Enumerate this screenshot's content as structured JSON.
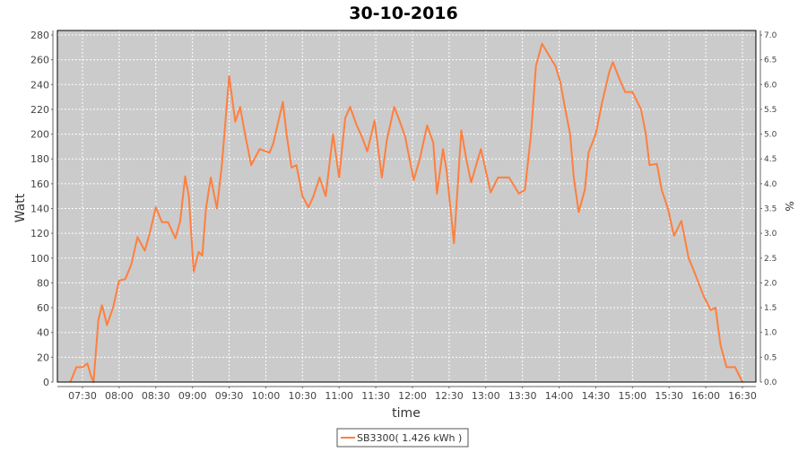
{
  "chart_data": {
    "type": "line",
    "title": "30-10-2016",
    "xlabel": "time",
    "ylabel": "Watt",
    "y2label": "%",
    "ylim": [
      0,
      280
    ],
    "y2lim": [
      0,
      7.0
    ],
    "xlim": [
      "07:13",
      "16:47"
    ],
    "yticks": [
      0,
      20,
      40,
      60,
      80,
      100,
      120,
      140,
      160,
      180,
      200,
      220,
      240,
      260,
      280
    ],
    "y2ticks": [
      "0.0",
      "0.5",
      "1.0",
      "1.5",
      "2.0",
      "2.5",
      "3.0",
      "3.5",
      "4.0",
      "4.5",
      "5.0",
      "5.5",
      "6.0",
      "6.5",
      "7.0"
    ],
    "xticks": [
      "07:30",
      "08:00",
      "08:30",
      "09:00",
      "09:30",
      "10:00",
      "10:30",
      "11:00",
      "11:30",
      "12:00",
      "12:30",
      "13:00",
      "13:30",
      "14:00",
      "14:30",
      "15:00",
      "15:30",
      "16:00",
      "16:30"
    ],
    "grid": true,
    "legend_position": "bottom",
    "colors": {
      "series": "#ff7f3f",
      "plot_background": "#cbcbcb",
      "grid": "#ffffff"
    },
    "series": [
      {
        "name": "SB3300( 1.426 kWh )",
        "points": [
          [
            "07:20",
            0
          ],
          [
            "07:25",
            12
          ],
          [
            "07:30",
            12
          ],
          [
            "07:34",
            15
          ],
          [
            "07:37",
            5
          ],
          [
            "07:39",
            0
          ],
          [
            "07:43",
            50
          ],
          [
            "07:46",
            62
          ],
          [
            "07:50",
            46
          ],
          [
            "07:55",
            60
          ],
          [
            "08:00",
            82
          ],
          [
            "08:05",
            83
          ],
          [
            "08:10",
            95
          ],
          [
            "08:15",
            117
          ],
          [
            "08:21",
            106
          ],
          [
            "08:25",
            120
          ],
          [
            "08:30",
            141
          ],
          [
            "08:35",
            129
          ],
          [
            "08:40",
            129
          ],
          [
            "08:46",
            116
          ],
          [
            "08:50",
            130
          ],
          [
            "08:54",
            166
          ],
          [
            "08:57",
            150
          ],
          [
            "09:01",
            89
          ],
          [
            "09:05",
            105
          ],
          [
            "09:08",
            102
          ],
          [
            "09:11",
            140
          ],
          [
            "09:15",
            165
          ],
          [
            "09:20",
            140
          ],
          [
            "09:24",
            175
          ],
          [
            "09:30",
            247
          ],
          [
            "09:35",
            210
          ],
          [
            "09:39",
            222
          ],
          [
            "09:43",
            200
          ],
          [
            "09:48",
            175
          ],
          [
            "09:55",
            188
          ],
          [
            "10:03",
            185
          ],
          [
            "10:06",
            192
          ],
          [
            "10:14",
            226
          ],
          [
            "10:17",
            200
          ],
          [
            "10:21",
            173
          ],
          [
            "10:25",
            175
          ],
          [
            "10:30",
            150
          ],
          [
            "10:35",
            141
          ],
          [
            "10:39",
            150
          ],
          [
            "10:44",
            165
          ],
          [
            "10:49",
            150
          ],
          [
            "10:55",
            200
          ],
          [
            "11:00",
            165
          ],
          [
            "11:05",
            213
          ],
          [
            "11:09",
            222
          ],
          [
            "11:14",
            208
          ],
          [
            "11:19",
            197
          ],
          [
            "11:23",
            186
          ],
          [
            "11:29",
            211
          ],
          [
            "11:35",
            165
          ],
          [
            "11:39",
            195
          ],
          [
            "11:45",
            222
          ],
          [
            "11:49",
            212
          ],
          [
            "11:54",
            198
          ],
          [
            "12:01",
            163
          ],
          [
            "12:06",
            180
          ],
          [
            "12:12",
            207
          ],
          [
            "12:17",
            193
          ],
          [
            "12:20",
            152
          ],
          [
            "12:25",
            188
          ],
          [
            "12:28",
            170
          ],
          [
            "12:34",
            112
          ],
          [
            "12:40",
            203
          ],
          [
            "12:44",
            180
          ],
          [
            "12:48",
            161
          ],
          [
            "12:56",
            188
          ],
          [
            "12:59",
            175
          ],
          [
            "13:04",
            153
          ],
          [
            "13:10",
            165
          ],
          [
            "13:19",
            165
          ],
          [
            "13:27",
            152
          ],
          [
            "13:32",
            155
          ],
          [
            "13:37",
            200
          ],
          [
            "13:41",
            255
          ],
          [
            "13:46",
            273
          ],
          [
            "13:52",
            263
          ],
          [
            "13:57",
            255
          ],
          [
            "14:01",
            242
          ],
          [
            "14:05",
            220
          ],
          [
            "14:09",
            200
          ],
          [
            "14:12",
            165
          ],
          [
            "14:16",
            137
          ],
          [
            "14:21",
            155
          ],
          [
            "14:24",
            185
          ],
          [
            "14:30",
            200
          ],
          [
            "14:35",
            225
          ],
          [
            "14:41",
            250
          ],
          [
            "14:44",
            258
          ],
          [
            "14:50",
            243
          ],
          [
            "14:54",
            234
          ],
          [
            "15:00",
            234
          ],
          [
            "15:07",
            220
          ],
          [
            "15:11",
            200
          ],
          [
            "15:14",
            175
          ],
          [
            "15:20",
            176
          ],
          [
            "15:24",
            155
          ],
          [
            "15:29",
            140
          ],
          [
            "15:34",
            118
          ],
          [
            "15:40",
            130
          ],
          [
            "15:46",
            100
          ],
          [
            "15:51",
            88
          ],
          [
            "15:58",
            70
          ],
          [
            "16:04",
            58
          ],
          [
            "16:08",
            60
          ],
          [
            "16:12",
            30
          ],
          [
            "16:17",
            12
          ],
          [
            "16:24",
            12
          ],
          [
            "16:30",
            0
          ]
        ]
      }
    ]
  }
}
